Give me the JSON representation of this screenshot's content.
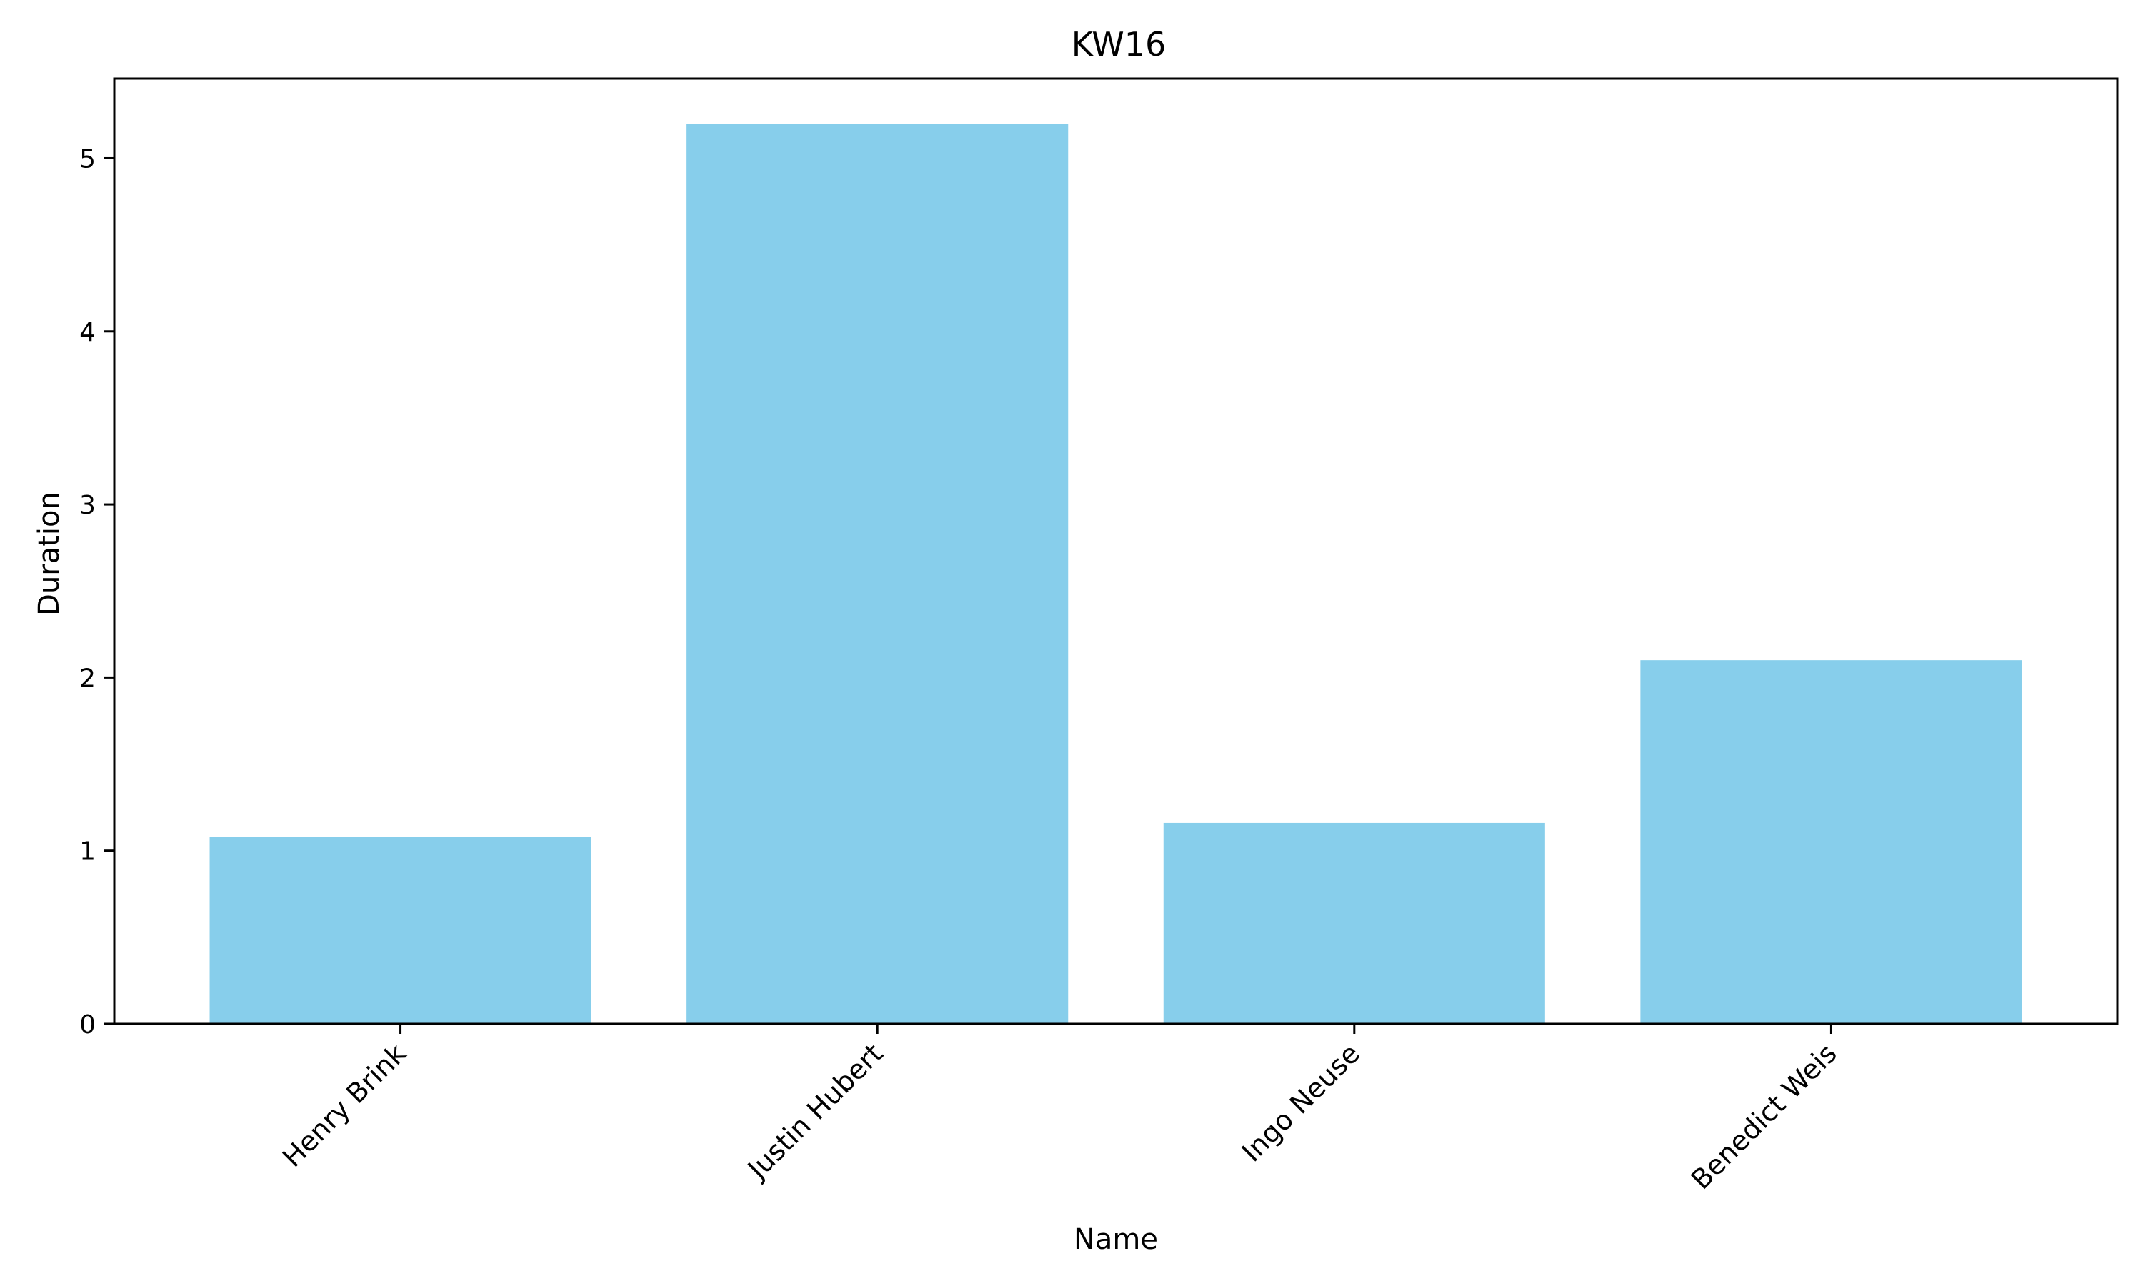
{
  "chart_data": {
    "type": "bar",
    "title": "KW16",
    "xlabel": "Name",
    "ylabel": "Duration",
    "categories": [
      "Henry Brink",
      "Justin Hubert",
      "Ingo Neuse",
      "Benedict Weis"
    ],
    "values": [
      1.08,
      5.2,
      1.16,
      2.1
    ],
    "ylim": [
      0,
      5.46
    ],
    "yticks": [
      0,
      1,
      2,
      3,
      4,
      5
    ],
    "bar_color": "#87ceeb",
    "grid": false,
    "legend": false
  }
}
